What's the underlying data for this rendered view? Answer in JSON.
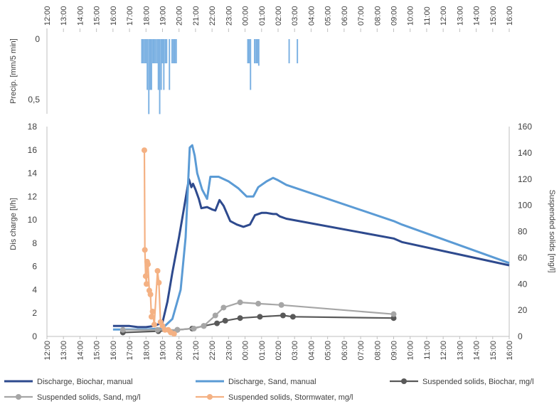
{
  "chart_data": [
    {
      "type": "bar",
      "ylabel": "Precip. [mm/5 min]",
      "y_ticks": [
        "0",
        "0,5"
      ],
      "ylim": [
        0,
        0.6
      ],
      "y_inverted": true,
      "x_tick_labels": [
        "12:00",
        "13:00",
        "14:00",
        "15:00",
        "16:00",
        "17:00",
        "18:00",
        "19:00",
        "20:00",
        "21:00",
        "22:00",
        "23:00",
        "00:00",
        "01:00",
        "02:00",
        "03:00",
        "04:00",
        "05:00",
        "06:00",
        "07:00",
        "08:00",
        "09:00",
        "10:00",
        "11:00",
        "12:00",
        "13:00",
        "14:00",
        "15:00",
        "16:00"
      ],
      "x_unit": "hours since 12:00",
      "bar_color": "#7ab0e2",
      "bars": [
        {
          "x": 5.75,
          "y": 0.2
        },
        {
          "x": 5.83,
          "y": 0.2
        },
        {
          "x": 5.92,
          "y": 0.2
        },
        {
          "x": 6.0,
          "y": 0.2
        },
        {
          "x": 6.08,
          "y": 0.42
        },
        {
          "x": 6.17,
          "y": 0.62
        },
        {
          "x": 6.25,
          "y": 0.42
        },
        {
          "x": 6.33,
          "y": 0.42
        },
        {
          "x": 6.42,
          "y": 0.2
        },
        {
          "x": 6.5,
          "y": 0.2
        },
        {
          "x": 6.58,
          "y": 0.2
        },
        {
          "x": 6.67,
          "y": 0.2
        },
        {
          "x": 6.75,
          "y": 0.42
        },
        {
          "x": 6.83,
          "y": 0.62
        },
        {
          "x": 6.92,
          "y": 0.42
        },
        {
          "x": 7.0,
          "y": 0.2
        },
        {
          "x": 7.08,
          "y": 0.42
        },
        {
          "x": 7.17,
          "y": 0.2
        },
        {
          "x": 7.25,
          "y": 0.2
        },
        {
          "x": 7.42,
          "y": 0.42
        },
        {
          "x": 7.58,
          "y": 0.2
        },
        {
          "x": 7.67,
          "y": 0.2
        },
        {
          "x": 7.75,
          "y": 0.2
        },
        {
          "x": 7.83,
          "y": 0.2
        },
        {
          "x": 12.17,
          "y": 0.2
        },
        {
          "x": 12.25,
          "y": 0.2
        },
        {
          "x": 12.33,
          "y": 0.42
        },
        {
          "x": 12.58,
          "y": 0.2
        },
        {
          "x": 12.67,
          "y": 0.2
        },
        {
          "x": 12.75,
          "y": 0.2
        },
        {
          "x": 12.83,
          "y": 0.22
        },
        {
          "x": 14.67,
          "y": 0.2
        },
        {
          "x": 15.17,
          "y": 0.2
        }
      ]
    },
    {
      "type": "line",
      "ylabel": "Dis charge [l/h]",
      "y2label": "Suspended solids [mg/l]",
      "ylim": [
        0,
        18
      ],
      "y2lim": [
        0,
        160
      ],
      "y_ticks": [
        0,
        2,
        4,
        6,
        8,
        10,
        12,
        14,
        16,
        18
      ],
      "y2_ticks": [
        0,
        20,
        40,
        60,
        80,
        100,
        120,
        140,
        160
      ],
      "x_tick_labels": [
        "12:00",
        "13:00",
        "14:00",
        "15:00",
        "16:00",
        "17:00",
        "18:00",
        "19:00",
        "20:00",
        "21:00",
        "22:00",
        "23:00",
        "00:00",
        "01:00",
        "02:00",
        "03:00",
        "04:00",
        "05:00",
        "06:00",
        "07:00",
        "08:00",
        "09:00",
        "10:00",
        "11:00",
        "12:00",
        "13:00",
        "14:00",
        "15:00",
        "16:00"
      ],
      "x_unit": "hours since 12:00",
      "legend_position": "bottom",
      "series": [
        {
          "name": "Discharge, Biochar, manual",
          "axis": "left",
          "color": "#2e4a8e",
          "marker": false,
          "points": [
            [
              4,
              0.9
            ],
            [
              5,
              0.9
            ],
            [
              5.5,
              0.8
            ],
            [
              6,
              0.8
            ],
            [
              6.5,
              0.9
            ],
            [
              7,
              1.2
            ],
            [
              7.3,
              3
            ],
            [
              7.6,
              5.5
            ],
            [
              8,
              8.5
            ],
            [
              8.3,
              11
            ],
            [
              8.6,
              13.5
            ],
            [
              8.75,
              12.8
            ],
            [
              8.85,
              13.1
            ],
            [
              9,
              12.6
            ],
            [
              9.2,
              11.8
            ],
            [
              9.35,
              11
            ],
            [
              9.7,
              11.1
            ],
            [
              10,
              10.9
            ],
            [
              10.2,
              10.8
            ],
            [
              10.45,
              11.7
            ],
            [
              10.7,
              11.2
            ],
            [
              11.1,
              9.9
            ],
            [
              11.5,
              9.6
            ],
            [
              11.9,
              9.4
            ],
            [
              12.3,
              9.6
            ],
            [
              12.6,
              10.4
            ],
            [
              13,
              10.6
            ],
            [
              13.3,
              10.6
            ],
            [
              13.7,
              10.5
            ],
            [
              13.9,
              10.5
            ],
            [
              14.1,
              10.3
            ],
            [
              14.5,
              10.1
            ],
            [
              21,
              8.4
            ],
            [
              21.5,
              8.1
            ],
            [
              28,
              6.1
            ]
          ]
        },
        {
          "name": "Discharge, Sand, manual",
          "axis": "left",
          "color": "#5b9bd5",
          "marker": false,
          "points": [
            [
              4,
              0.6
            ],
            [
              6,
              0.6
            ],
            [
              7,
              0.7
            ],
            [
              7.6,
              1.5
            ],
            [
              8.1,
              4
            ],
            [
              8.4,
              8.5
            ],
            [
              8.65,
              16.2
            ],
            [
              8.8,
              16.4
            ],
            [
              8.95,
              15.5
            ],
            [
              9.1,
              14
            ],
            [
              9.4,
              12.6
            ],
            [
              9.7,
              11.8
            ],
            [
              9.9,
              13.7
            ],
            [
              10.4,
              13.7
            ],
            [
              11,
              13.3
            ],
            [
              11.6,
              12.7
            ],
            [
              12.1,
              12
            ],
            [
              12.5,
              12
            ],
            [
              12.8,
              12.8
            ],
            [
              13.3,
              13.3
            ],
            [
              13.7,
              13.6
            ],
            [
              14,
              13.4
            ],
            [
              14.5,
              13
            ],
            [
              21,
              9.9
            ],
            [
              21.5,
              9.6
            ],
            [
              28,
              6.3
            ]
          ]
        },
        {
          "name": "Suspended solids, Biochar, mg/l",
          "axis": "right",
          "color": "#595959",
          "marker": true,
          "points": [
            [
              4.6,
              3
            ],
            [
              6.75,
              4
            ],
            [
              7.9,
              5
            ],
            [
              8.8,
              6
            ],
            [
              9.5,
              8
            ],
            [
              10.3,
              10
            ],
            [
              10.8,
              12
            ],
            [
              11.7,
              14
            ],
            [
              12.9,
              15
            ],
            [
              14.3,
              16
            ],
            [
              14.9,
              15
            ],
            [
              21,
              14
            ]
          ]
        },
        {
          "name": "Suspended solids, Sand, mg/l",
          "axis": "right",
          "color": "#a6a6a6",
          "marker": true,
          "points": [
            [
              4.6,
              5
            ],
            [
              6.7,
              5
            ],
            [
              7.9,
              5
            ],
            [
              8.9,
              6
            ],
            [
              9.5,
              8
            ],
            [
              10.2,
              16
            ],
            [
              10.7,
              22
            ],
            [
              11.7,
              26
            ],
            [
              12.8,
              25
            ],
            [
              14.2,
              24
            ],
            [
              21,
              17
            ]
          ]
        },
        {
          "name": "Suspended solids, Stormwater, mg/l",
          "axis": "right",
          "color": "#f4b183",
          "marker": true,
          "points": [
            [
              5.9,
              142
            ],
            [
              5.93,
              66
            ],
            [
              5.98,
              46
            ],
            [
              6.03,
              40
            ],
            [
              6.07,
              57
            ],
            [
              6.12,
              55
            ],
            [
              6.2,
              35
            ],
            [
              6.27,
              32
            ],
            [
              6.33,
              15
            ],
            [
              6.4,
              19
            ],
            [
              6.5,
              9
            ],
            [
              6.7,
              50
            ],
            [
              6.78,
              41
            ],
            [
              6.88,
              11
            ],
            [
              7.0,
              8
            ],
            [
              7.15,
              5
            ],
            [
              7.35,
              5
            ],
            [
              7.5,
              3
            ],
            [
              7.7,
              2
            ]
          ]
        }
      ]
    }
  ]
}
